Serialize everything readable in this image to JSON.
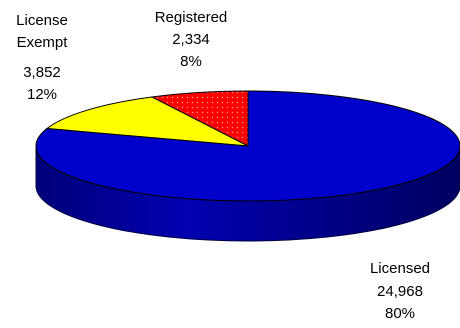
{
  "chart_data": {
    "type": "pie",
    "title": "",
    "slices": [
      {
        "label": "Licensed",
        "value": 24968,
        "value_text": "24,968",
        "percent_text": "80%",
        "color": "#0000cc"
      },
      {
        "label": "License Exempt",
        "value": 3852,
        "value_text": "3,852",
        "percent_text": "12%",
        "color": "#ffff00"
      },
      {
        "label": "Registered",
        "value": 2334,
        "value_text": "2,334",
        "percent_text": "8%",
        "color": "#ff0000"
      }
    ],
    "style": "3d-perspective"
  }
}
